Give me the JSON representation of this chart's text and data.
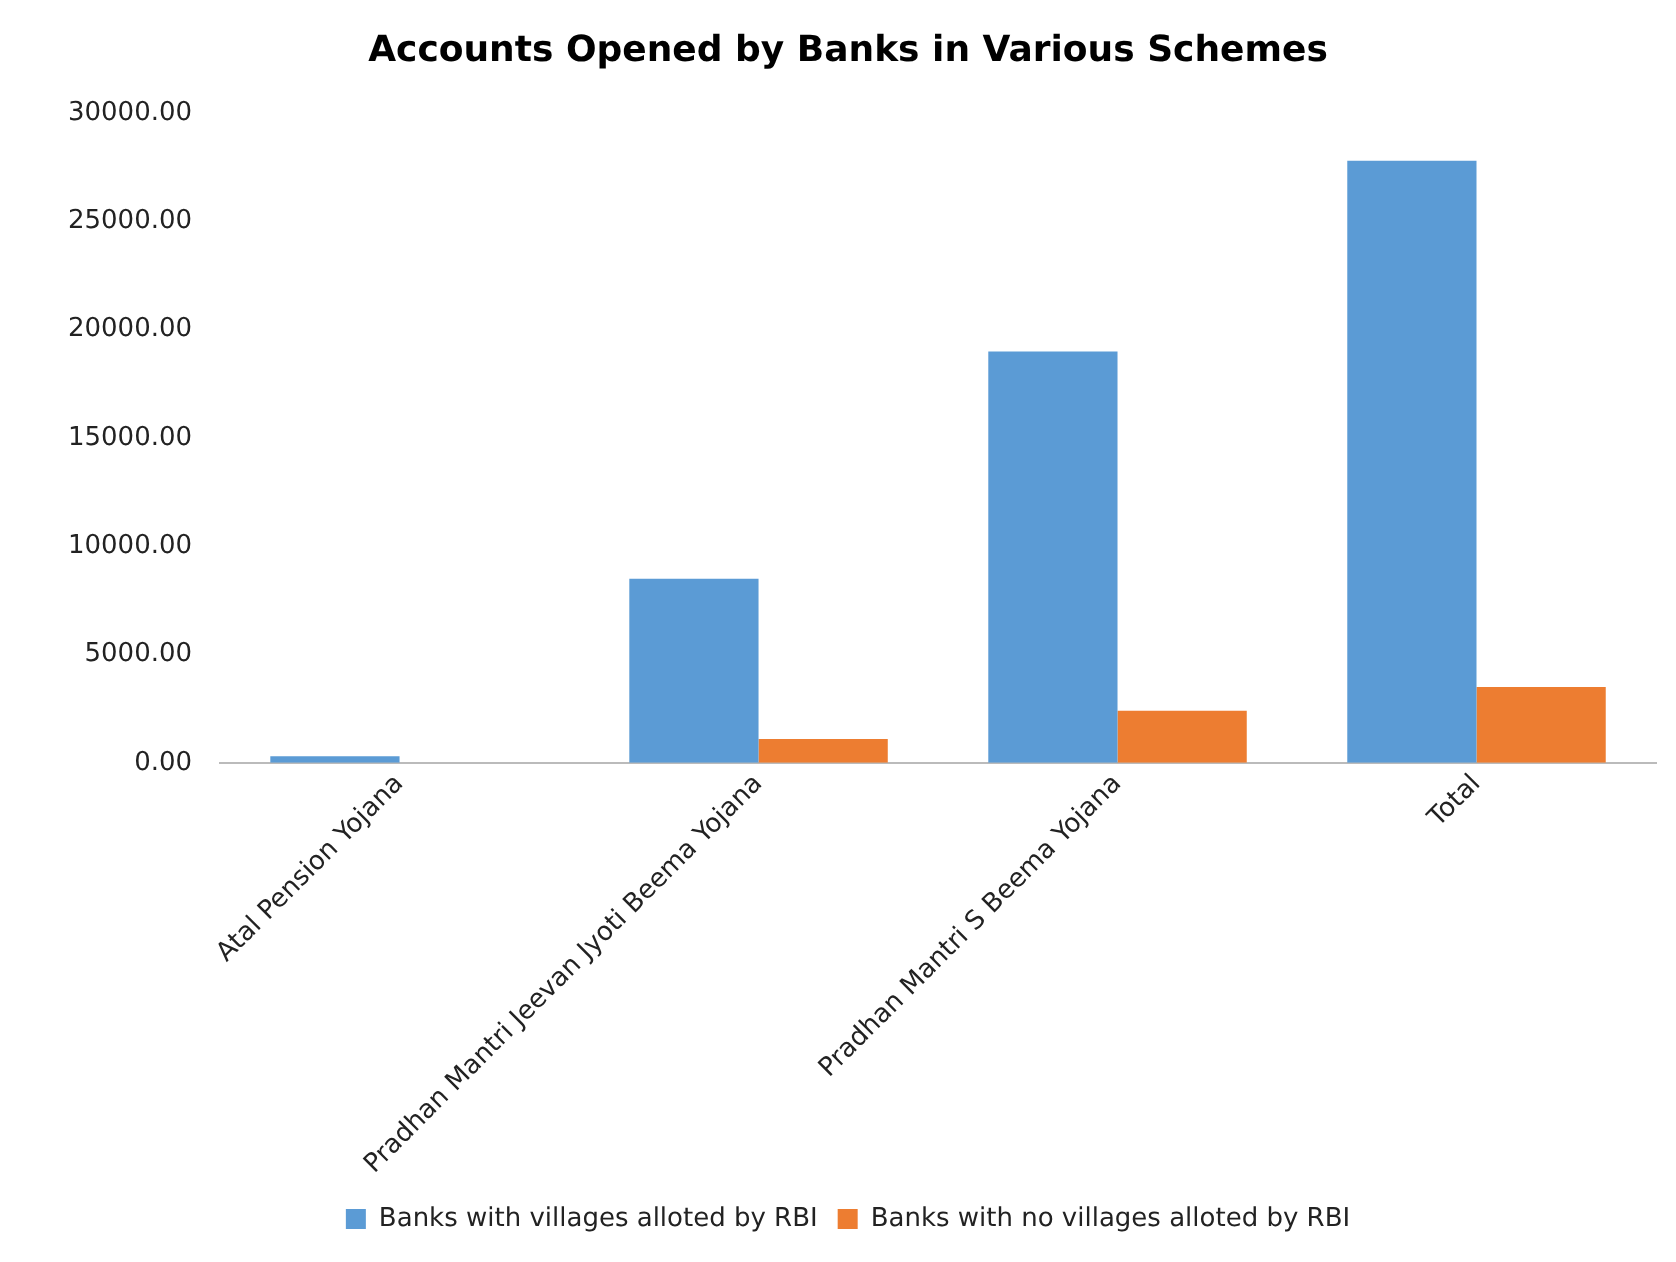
{
  "chart_data": {
    "type": "bar",
    "title": "Accounts Opened by Banks in Various Schemes",
    "categories": [
      "Atal Pension Yojana",
      "Pradhan Mantri Jeevan Jyoti Beema Yojana",
      "Pradhan Mantri S Beema Yojana",
      "Total"
    ],
    "series": [
      {
        "name": "Banks with villages alloted by RBI",
        "color": "#5b9bd5",
        "values": [
          300,
          8500,
          19000,
          27800
        ]
      },
      {
        "name": "Banks with no villages alloted by RBI",
        "color": "#ed7d31",
        "values": [
          0,
          1100,
          2400,
          3500
        ]
      }
    ],
    "ylim": [
      0,
      30000
    ],
    "yticks": [
      {
        "value": 0,
        "label": "0.00"
      },
      {
        "value": 5000,
        "label": "5000.00"
      },
      {
        "value": 10000,
        "label": "10000.00"
      },
      {
        "value": 15000,
        "label": "15000.00"
      },
      {
        "value": 20000,
        "label": "20000.00"
      },
      {
        "value": 25000,
        "label": "25000.00"
      },
      {
        "value": 30000,
        "label": "30000.00"
      }
    ],
    "grid": false,
    "legend": "bottom"
  }
}
